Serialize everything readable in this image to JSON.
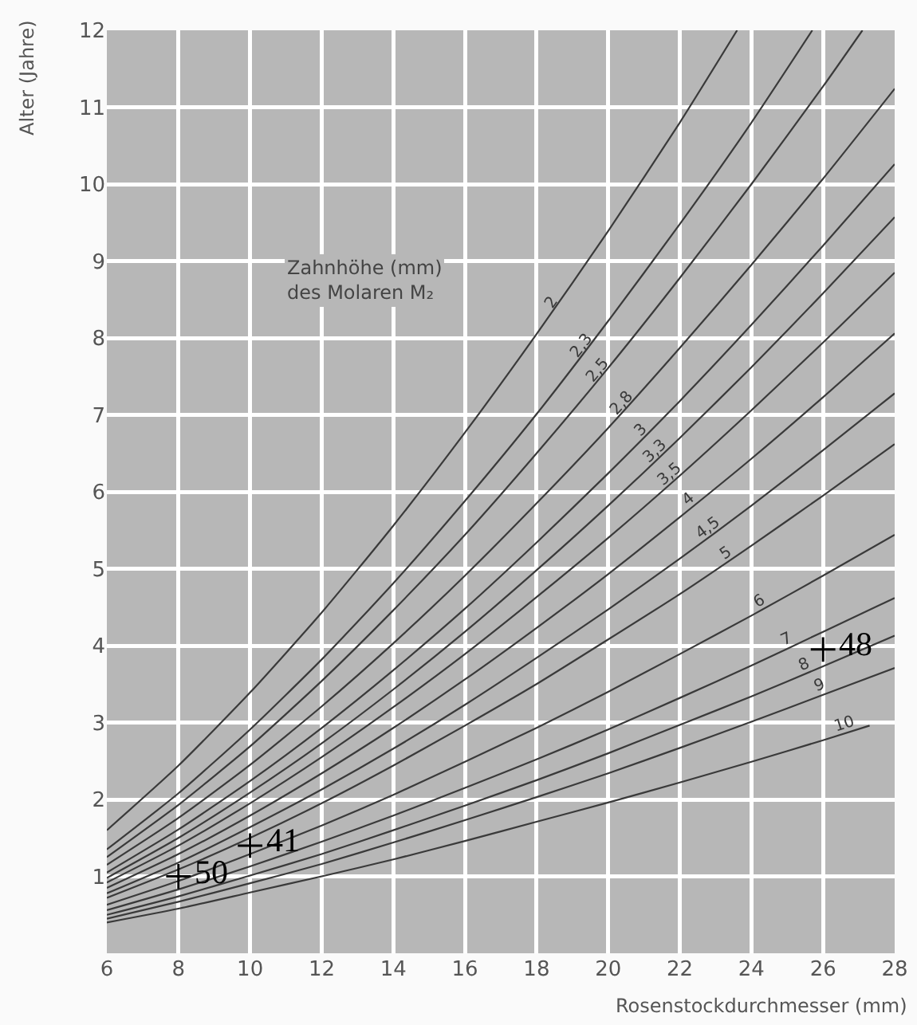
{
  "chart_data": {
    "type": "line",
    "xlabel": "Rosenstockdurchmesser (mm)",
    "ylabel": "Alter (Jahre)",
    "legend_title": "Zahnhöhe (mm)\ndes Molaren M₂",
    "x": [
      6,
      8,
      10,
      12,
      14,
      16,
      18,
      20,
      22,
      24,
      26,
      28
    ],
    "xlim": [
      6,
      28
    ],
    "xticks": [
      6,
      8,
      10,
      12,
      14,
      16,
      18,
      20,
      22,
      24,
      26,
      28
    ],
    "ylim": [
      0,
      12
    ],
    "yticks": [
      1,
      2,
      3,
      4,
      5,
      6,
      7,
      8,
      9,
      10,
      11,
      12
    ],
    "grid": true,
    "legend": false,
    "marker": "none",
    "line_style": "solid",
    "series": [
      {
        "name": "2",
        "color": "#3a3a3a",
        "x": [
          6,
          8,
          10,
          12,
          14,
          16,
          18,
          20,
          22,
          23.6
        ],
        "values": [
          1.6,
          2.44,
          3.39,
          4.43,
          5.56,
          6.77,
          8.05,
          9.39,
          10.8,
          12
        ]
      },
      {
        "name": "2,3",
        "color": "#3a3a3a",
        "x": [
          6,
          8,
          10,
          12,
          14,
          16,
          18,
          20,
          22,
          24,
          25.7
        ],
        "values": [
          1.35,
          2.08,
          2.91,
          3.82,
          4.81,
          5.88,
          7.01,
          8.22,
          9.48,
          10.8,
          12
        ]
      },
      {
        "name": "2,5",
        "color": "#3a3a3a",
        "x": [
          6,
          8,
          10,
          12,
          14,
          16,
          18,
          20,
          22,
          24,
          26,
          27.1
        ],
        "values": [
          1.25,
          1.93,
          2.69,
          3.54,
          4.46,
          5.44,
          6.5,
          7.61,
          8.78,
          10.0,
          11.27,
          12
        ]
      },
      {
        "name": "2,8",
        "color": "#3a3a3a",
        "values": [
          1.15,
          1.76,
          2.45,
          3.21,
          4.03,
          4.91,
          5.85,
          6.83,
          7.87,
          8.95,
          10.07,
          11.24
        ]
      },
      {
        "name": "3",
        "color": "#3a3a3a",
        "values": [
          1.05,
          1.61,
          2.24,
          2.93,
          3.68,
          4.48,
          5.34,
          6.24,
          7.18,
          8.17,
          9.2,
          10.26
        ]
      },
      {
        "name": "3,3",
        "color": "#3a3a3a",
        "values": [
          0.98,
          1.5,
          2.09,
          2.73,
          3.43,
          4.18,
          4.98,
          5.82,
          6.7,
          7.62,
          8.58,
          9.57
        ]
      },
      {
        "name": "3,5",
        "color": "#3a3a3a",
        "values": [
          0.92,
          1.4,
          1.95,
          2.55,
          3.2,
          3.89,
          4.63,
          5.4,
          6.21,
          7.06,
          7.94,
          8.85
        ]
      },
      {
        "name": "4",
        "color": "#3a3a3a",
        "values": [
          0.85,
          1.29,
          1.79,
          2.34,
          2.93,
          3.56,
          4.23,
          4.93,
          5.67,
          6.43,
          7.23,
          8.06
        ]
      },
      {
        "name": "4,5",
        "color": "#3a3a3a",
        "values": [
          0.78,
          1.18,
          1.64,
          2.13,
          2.66,
          3.23,
          3.84,
          4.47,
          5.13,
          5.82,
          6.54,
          7.28
        ]
      },
      {
        "name": "5",
        "color": "#3a3a3a",
        "values": [
          0.72,
          1.09,
          1.5,
          1.95,
          2.44,
          2.96,
          3.5,
          4.08,
          4.67,
          5.3,
          5.95,
          6.62
        ]
      },
      {
        "name": "6",
        "color": "#3a3a3a",
        "values": [
          0.63,
          0.94,
          1.29,
          1.66,
          2.06,
          2.49,
          2.93,
          3.4,
          3.89,
          4.39,
          4.91,
          5.44
        ]
      },
      {
        "name": "7",
        "color": "#3a3a3a",
        "values": [
          0.56,
          0.83,
          1.13,
          1.45,
          1.79,
          2.15,
          2.52,
          2.91,
          3.32,
          3.74,
          4.18,
          4.62
        ]
      },
      {
        "name": "8",
        "color": "#3a3a3a",
        "values": [
          0.5,
          0.74,
          1.01,
          1.29,
          1.6,
          1.92,
          2.25,
          2.6,
          2.97,
          3.34,
          3.73,
          4.13
        ]
      },
      {
        "name": "9",
        "color": "#3a3a3a",
        "values": [
          0.45,
          0.67,
          0.91,
          1.16,
          1.44,
          1.73,
          2.03,
          2.34,
          2.67,
          3.01,
          3.36,
          3.71
        ]
      },
      {
        "name": "10",
        "color": "#3a3a3a",
        "x": [
          6,
          8,
          10,
          12,
          14,
          16,
          18,
          20,
          22,
          24,
          26,
          27.3
        ],
        "values": [
          0.4,
          0.58,
          0.79,
          1.0,
          1.22,
          1.46,
          1.71,
          1.96,
          2.22,
          2.49,
          2.77,
          2.96
        ]
      },
      {
        "type": "scatter",
        "marker": "cross",
        "color": "#000000",
        "x": [
          8,
          10,
          26
        ],
        "values": [
          1.0,
          1.4,
          3.95
        ]
      }
    ],
    "annotations": [
      {
        "text": "50",
        "x": 8,
        "y": 1.0
      },
      {
        "text": "41",
        "x": 10,
        "y": 1.4
      },
      {
        "text": "48",
        "x": 26,
        "y": 3.95
      }
    ]
  }
}
